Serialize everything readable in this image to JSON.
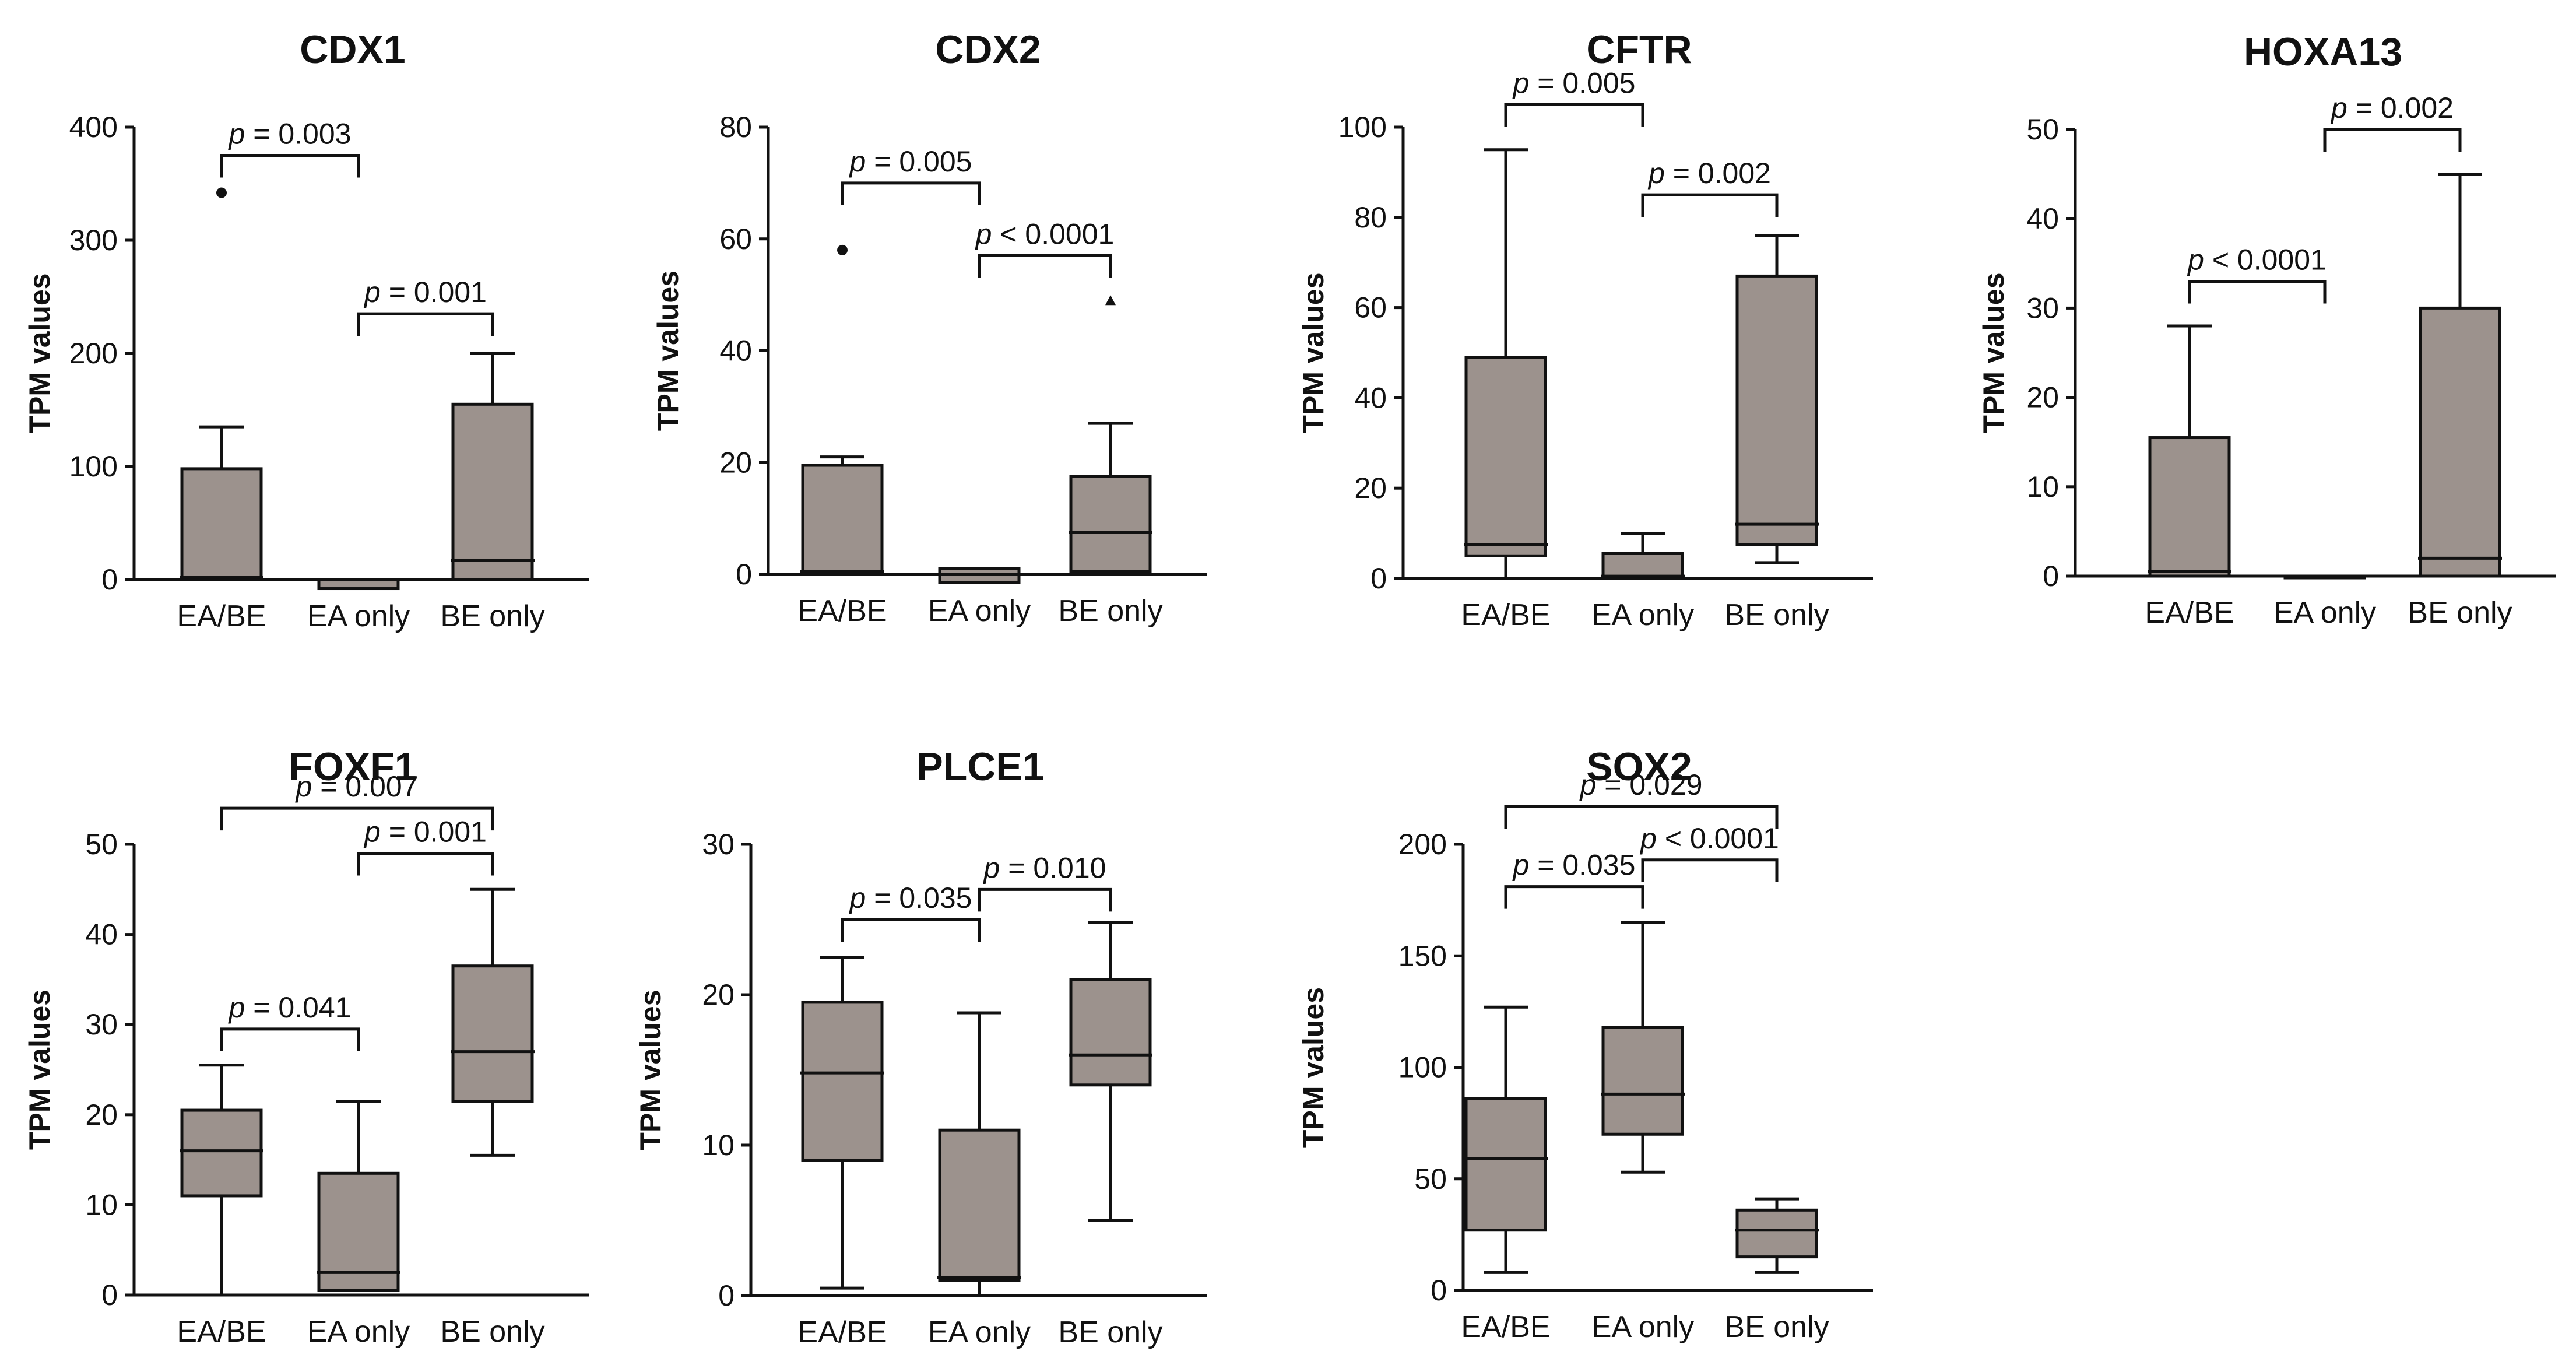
{
  "chart_data": [
    {
      "type": "box",
      "title": "CDX1",
      "ylabel": "TPM values",
      "ylim": [
        0,
        400
      ],
      "yticks": [
        0,
        100,
        200,
        300,
        400
      ],
      "categories": [
        "EA/BE",
        "EA only",
        "BE only"
      ],
      "boxes": [
        {
          "whisker_low": 0,
          "q1": 0,
          "median": 2,
          "q3": 98,
          "whisker_high": 135,
          "outliers": [
            {
              "value": 342,
              "marker": "circle"
            }
          ]
        },
        {
          "whisker_low": -8,
          "q1": -8,
          "median": 0,
          "q3": 0,
          "whisker_high": 0,
          "outliers": []
        },
        {
          "whisker_low": 0,
          "q1": 0,
          "median": 17,
          "q3": 155,
          "whisker_high": 200,
          "outliers": []
        }
      ],
      "comparisons": [
        {
          "from": 0,
          "to": 1,
          "label": "p = 0.003",
          "y": 375
        },
        {
          "from": 1,
          "to": 2,
          "label": "p = 0.001",
          "y": 235
        }
      ]
    },
    {
      "type": "box",
      "title": "CDX2",
      "ylabel": "TPM values",
      "ylim": [
        0,
        80
      ],
      "yticks": [
        0,
        20,
        40,
        60,
        80
      ],
      "categories": [
        "EA/BE",
        "EA only",
        "BE only"
      ],
      "boxes": [
        {
          "whisker_low": 0,
          "q1": 0,
          "median": 0.5,
          "q3": 19.5,
          "whisker_high": 21,
          "outliers": [
            {
              "value": 58,
              "marker": "circle"
            }
          ]
        },
        {
          "whisker_low": -1.5,
          "q1": -1.5,
          "median": 0,
          "q3": 1,
          "whisker_high": 1,
          "outliers": []
        },
        {
          "whisker_low": 0.5,
          "q1": 0.5,
          "median": 7.5,
          "q3": 17.5,
          "whisker_high": 27,
          "outliers": [
            {
              "value": 49,
              "marker": "triangle"
            }
          ]
        }
      ],
      "comparisons": [
        {
          "from": 0,
          "to": 1,
          "label": "p = 0.005",
          "y": 70
        },
        {
          "from": 1,
          "to": 2,
          "label": "p < 0.0001",
          "y": 57
        }
      ]
    },
    {
      "type": "box",
      "title": "CFTR",
      "ylabel": "TPM values",
      "ylim": [
        0,
        100
      ],
      "yticks": [
        0,
        20,
        40,
        60,
        80,
        100
      ],
      "categories": [
        "EA/BE",
        "EA only",
        "BE only"
      ],
      "boxes": [
        {
          "whisker_low": 0,
          "q1": 5,
          "median": 7.5,
          "q3": 49,
          "whisker_high": 95,
          "outliers": []
        },
        {
          "whisker_low": 0,
          "q1": 0,
          "median": 0.5,
          "q3": 5.5,
          "whisker_high": 10,
          "outliers": []
        },
        {
          "whisker_low": 3.5,
          "q1": 7.5,
          "median": 12,
          "q3": 67,
          "whisker_high": 76,
          "outliers": []
        }
      ],
      "comparisons": [
        {
          "from": 0,
          "to": 1,
          "label": "p = 0.005",
          "y": 105
        },
        {
          "from": 1,
          "to": 2,
          "label": "p = 0.002",
          "y": 85
        }
      ]
    },
    {
      "type": "box",
      "title": "HOXA13",
      "ylabel": "TPM values",
      "ylim": [
        0,
        50
      ],
      "yticks": [
        0,
        10,
        20,
        30,
        40,
        50
      ],
      "categories": [
        "EA/BE",
        "EA only",
        "BE only"
      ],
      "boxes": [
        {
          "whisker_low": 0,
          "q1": 0,
          "median": 0.5,
          "q3": 15.5,
          "whisker_high": 28,
          "outliers": []
        },
        {
          "whisker_low": 0,
          "q1": 0,
          "median": 0,
          "q3": 0,
          "whisker_high": 0,
          "outliers": []
        },
        {
          "whisker_low": 0,
          "q1": 0,
          "median": 2,
          "q3": 30,
          "whisker_high": 45,
          "outliers": []
        }
      ],
      "comparisons": [
        {
          "from": 0,
          "to": 1,
          "label": "p < 0.0001",
          "y": 33
        },
        {
          "from": 1,
          "to": 2,
          "label": "p = 0.002",
          "y": 50
        }
      ]
    },
    {
      "type": "box",
      "title": "FOXF1",
      "ylabel": "TPM values",
      "ylim": [
        0,
        50
      ],
      "yticks": [
        0,
        10,
        20,
        30,
        40,
        50
      ],
      "categories": [
        "EA/BE",
        "EA only",
        "BE only"
      ],
      "boxes": [
        {
          "whisker_low": 0,
          "q1": 11,
          "median": 16,
          "q3": 20.5,
          "whisker_high": 25.5,
          "outliers": []
        },
        {
          "whisker_low": 0.5,
          "q1": 0.5,
          "median": 2.5,
          "q3": 13.5,
          "whisker_high": 21.5,
          "outliers": []
        },
        {
          "whisker_low": 15.5,
          "q1": 21.5,
          "median": 27,
          "q3": 36.5,
          "whisker_high": 45,
          "outliers": []
        }
      ],
      "comparisons": [
        {
          "from": 0,
          "to": 1,
          "label": "p = 0.041",
          "y": 29.5
        },
        {
          "from": 1,
          "to": 2,
          "label": "p = 0.001",
          "y": 49
        },
        {
          "from": 0,
          "to": 2,
          "label": "p = 0.007",
          "y": 54
        }
      ]
    },
    {
      "type": "box",
      "title": "PLCE1",
      "ylabel": "TPM values",
      "ylim": [
        0,
        30
      ],
      "yticks": [
        0,
        10,
        20,
        30
      ],
      "categories": [
        "EA/BE",
        "EA only",
        "BE only"
      ],
      "boxes": [
        {
          "whisker_low": 0.5,
          "q1": 9,
          "median": 14.8,
          "q3": 19.5,
          "whisker_high": 22.5,
          "outliers": []
        },
        {
          "whisker_low": 0,
          "q1": 1,
          "median": 1.2,
          "q3": 11,
          "whisker_high": 18.8,
          "outliers": []
        },
        {
          "whisker_low": 5,
          "q1": 14,
          "median": 16,
          "q3": 21,
          "whisker_high": 24.8,
          "outliers": []
        }
      ],
      "comparisons": [
        {
          "from": 0,
          "to": 1,
          "label": "p = 0.035",
          "y": 25
        },
        {
          "from": 1,
          "to": 2,
          "label": "p = 0.010",
          "y": 27
        }
      ]
    },
    {
      "type": "box",
      "title": "SOX2",
      "ylabel": "TPM values",
      "ylim": [
        0,
        200
      ],
      "yticks": [
        0,
        50,
        100,
        150,
        200
      ],
      "categories": [
        "EA/BE",
        "EA only",
        "BE only"
      ],
      "boxes": [
        {
          "whisker_low": 8,
          "q1": 27,
          "median": 59,
          "q3": 86,
          "whisker_high": 127,
          "outliers": []
        },
        {
          "whisker_low": 53,
          "q1": 70,
          "median": 88,
          "q3": 118,
          "whisker_high": 165,
          "outliers": []
        },
        {
          "whisker_low": 8,
          "q1": 15,
          "median": 27,
          "q3": 36,
          "whisker_high": 41,
          "outliers": []
        }
      ],
      "comparisons": [
        {
          "from": 0,
          "to": 1,
          "label": "p = 0.035",
          "y": 181
        },
        {
          "from": 1,
          "to": 2,
          "label": "p < 0.0001",
          "y": 193
        },
        {
          "from": 0,
          "to": 2,
          "label": "p = 0.029",
          "y": 217
        }
      ]
    }
  ]
}
